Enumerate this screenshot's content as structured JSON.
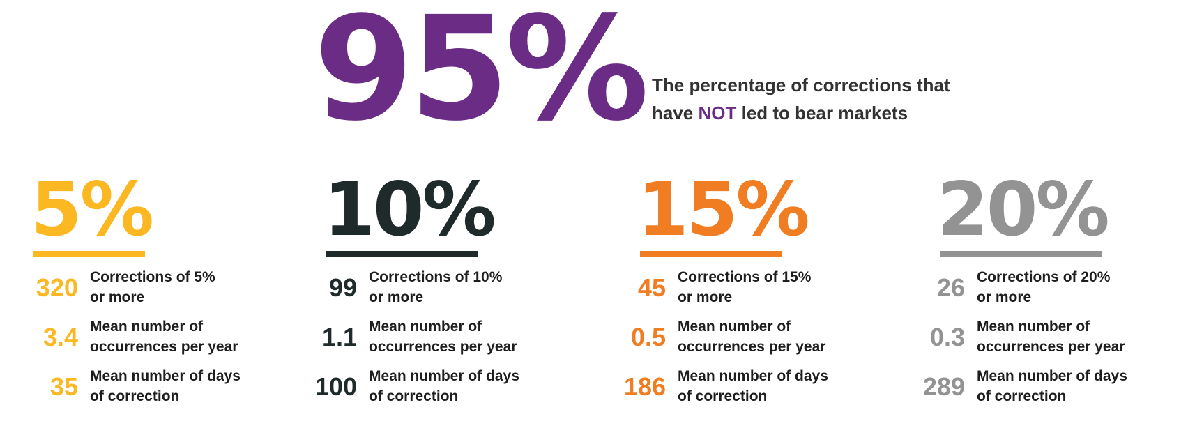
{
  "hero": {
    "value": "95%",
    "caption_line1": "The percentage of corrections that",
    "caption_line2_before": "have ",
    "caption_line2_accent": "NOT",
    "caption_line2_after": " led to bear markets",
    "accent_color": "#6b2c85"
  },
  "columns": [
    {
      "headline": "5%",
      "color": "#fbb823",
      "stats": [
        {
          "value": "320",
          "label_line1": "Corrections of 5%",
          "label_line2": "or more"
        },
        {
          "value": "3.4",
          "label_line1": "Mean number of",
          "label_line2": "occurrences per year"
        },
        {
          "value": "35",
          "label_line1": "Mean number of days",
          "label_line2": "of correction"
        }
      ]
    },
    {
      "headline": "10%",
      "color": "#1f2b2b",
      "stats": [
        {
          "value": "99",
          "label_line1": "Corrections of 10%",
          "label_line2": "or more"
        },
        {
          "value": "1.1",
          "label_line1": "Mean number of",
          "label_line2": "occurrences per year"
        },
        {
          "value": "100",
          "label_line1": "Mean number of days",
          "label_line2": "of correction"
        }
      ]
    },
    {
      "headline": "15%",
      "color": "#f07d22",
      "stats": [
        {
          "value": "45",
          "label_line1": "Corrections of 15%",
          "label_line2": "or more"
        },
        {
          "value": "0.5",
          "label_line1": "Mean number of",
          "label_line2": "occurrences per year"
        },
        {
          "value": "186",
          "label_line1": "Mean number of days",
          "label_line2": "of correction"
        }
      ]
    },
    {
      "headline": "20%",
      "color": "#939393",
      "stats": [
        {
          "value": "26",
          "label_line1": "Corrections of 20%",
          "label_line2": "or more"
        },
        {
          "value": "0.3",
          "label_line1": "Mean number of",
          "label_line2": "occurrences per year"
        },
        {
          "value": "289",
          "label_line1": "Mean number of days",
          "label_line2": "of correction"
        }
      ]
    }
  ]
}
